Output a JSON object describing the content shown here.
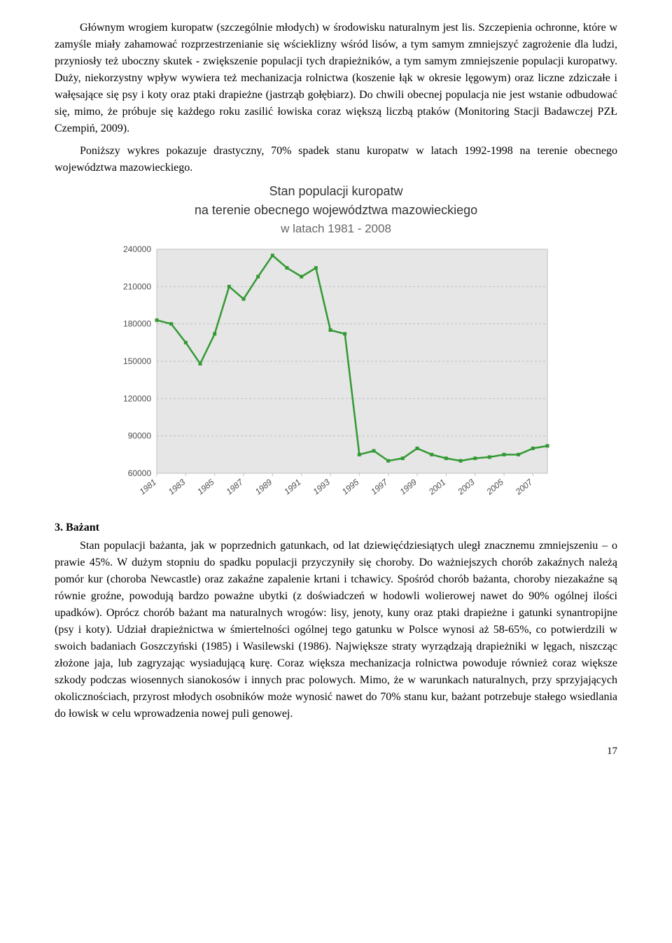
{
  "para1": "Głównym wrogiem kuropatw (szczególnie młodych) w środowisku naturalnym jest lis. Szczepienia ochronne, które w zamyśle miały zahamować rozprzestrzenianie się wścieklizny wśród lisów, a tym samym zmniejszyć zagrożenie dla ludzi, przyniosły też uboczny skutek - zwiększenie populacji tych drapieżników, a tym samym zmniejszenie populacji kuropatwy. Duży, niekorzystny wpływ wywiera też mechanizacja rolnictwa (koszenie łąk w okresie lęgowym) oraz liczne zdziczałe i wałęsające się psy i koty oraz ptaki drapieżne (jastrząb gołębiarz). Do chwili obecnej populacja nie jest wstanie odbudować się, mimo, że próbuje się każdego roku zasilić łowiska coraz większą liczbą ptaków (Monitoring Stacji Badawczej PZŁ Czempiń, 2009).",
  "para2": "Poniższy wykres pokazuje drastyczny, 70% spadek stanu kuropatw w latach 1992-1998 na terenie obecnego województwa mazowieckiego.",
  "chart": {
    "title_lines": [
      "Stan populacji kuropatw",
      "na terenie obecnego województwa mazowieckiego",
      "w latach 1981 - 2008"
    ],
    "plot_bg": "#e6e6e6",
    "grid_color": "#bfbfbf",
    "line_color": "#339933",
    "marker_color": "#339933",
    "axis_text_color": "#4d4d4d",
    "line_width": 2.5,
    "marker_size": 5,
    "y_min": 60000,
    "y_max": 240000,
    "y_ticks": [
      60000,
      90000,
      120000,
      150000,
      180000,
      210000,
      240000
    ],
    "x_labels": [
      "1981",
      "1983",
      "1985",
      "1987",
      "1989",
      "1991",
      "1993",
      "1995",
      "1997",
      "1999",
      "2001",
      "2003",
      "2005",
      "2007"
    ],
    "years": [
      1981,
      1982,
      1983,
      1984,
      1985,
      1986,
      1987,
      1988,
      1989,
      1990,
      1991,
      1992,
      1993,
      1994,
      1995,
      1996,
      1997,
      1998,
      1999,
      2000,
      2001,
      2002,
      2003,
      2004,
      2005,
      2006,
      2007,
      2008
    ],
    "values": [
      183000,
      180000,
      165000,
      148000,
      172000,
      210000,
      200000,
      218000,
      235000,
      225000,
      218000,
      225000,
      175000,
      172000,
      75000,
      78000,
      70000,
      72000,
      80000,
      75000,
      72000,
      70000,
      72000,
      73000,
      75000,
      75000,
      80000,
      82000
    ]
  },
  "section3_title": "3. Bażant",
  "para3": "Stan populacji bażanta, jak w poprzednich gatunkach, od lat dziewięćdziesiątych uległ znacznemu zmniejszeniu – o prawie 45%. W dużym stopniu do spadku populacji przyczyniły się choroby. Do ważniejszych chorób zakaźnych należą pomór kur (choroba Newcastle) oraz zakaźne zapalenie krtani i tchawicy. Spośród chorób bażanta, choroby niezakaźne są równie groźne, powodują bardzo poważne ubytki (z doświadczeń w hodowli wolierowej nawet do 90% ogólnej ilości upadków). Oprócz chorób bażant ma naturalnych wrogów: lisy, jenoty, kuny oraz ptaki drapieżne i gatunki synantropijne (psy i koty). Udział drapieżnictwa w śmiertelności ogólnej tego gatunku w Polsce wynosi aż 58-65%, co potwierdzili w swoich badaniach Goszczyński (1985) i Wasilewski (1986). Największe straty wyrządzają drapieżniki w lęgach, niszcząc złożone jaja, lub zagryzając wysiadującą kurę. Coraz większa mechanizacja rolnictwa powoduje również coraz większe szkody podczas wiosennych sianokosów i innych prac polowych. Mimo, że w warunkach naturalnych, przy sprzyjających okolicznościach, przyrost młodych osobników może wynosić nawet do 70% stanu kur, bażant potrzebuje stałego wsiedlania do łowisk w celu wprowadzenia nowej puli genowej.",
  "page_number": "17"
}
